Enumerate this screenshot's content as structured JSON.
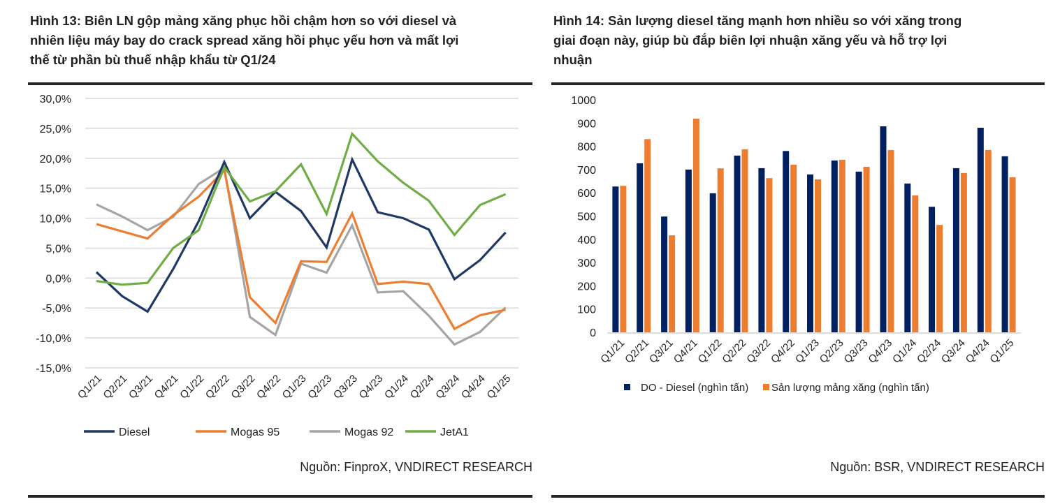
{
  "figures": [
    {
      "title_prefix": "Hình 13",
      "title_lines": [
        ": Biên LN gộp mảng xăng phục hồi chậm hơn so với diesel và",
        "nhiên liệu máy bay do crack spread xăng hồi phục yếu hơn và mất lợi",
        "thế từ phần bù thuế nhập khẩu từ Q1/24"
      ],
      "source": "Nguồn: FinproX, VNDIRECT RESEARCH"
    },
    {
      "title_prefix": "Hình 14",
      "title_lines": [
        ": Sản lượng diesel tăng mạnh hơn nhiều so với xăng trong",
        "giai đoạn này, giúp bù đắp biên lợi nhuận xăng yếu và hỗ trợ lợi",
        "nhuận"
      ],
      "source": "Nguồn: BSR, VNDIRECT RESEARCH"
    }
  ],
  "chart_data": [
    {
      "type": "line",
      "title": "",
      "xlabel": "",
      "ylabel": "",
      "categories": [
        "Q1/21",
        "Q2/21",
        "Q3/21",
        "Q4/21",
        "Q1/22",
        "Q2/22",
        "Q3/22",
        "Q4/22",
        "Q1/23",
        "Q2/23",
        "Q3/23",
        "Q4/23",
        "Q1/24",
        "Q2/24",
        "Q3/24",
        "Q4/24",
        "Q1/25"
      ],
      "ylim": [
        -15,
        30
      ],
      "yticks": [
        30,
        25,
        20,
        15,
        10,
        5,
        0,
        -5,
        -10,
        -15
      ],
      "ytick_labels": [
        "30,0%",
        "25,0%",
        "20,0%",
        "15,0%",
        "10,0%",
        "5,0%",
        "0,0%",
        "-5,0%",
        "-10,0%",
        "-15,0%"
      ],
      "unit": "%",
      "grid": true,
      "legend_position": "bottom",
      "series": [
        {
          "name": "Diesel",
          "color": "#1F3864",
          "values": [
            1.0,
            -3.0,
            -5.6,
            1.5,
            9.5,
            19.4,
            10.0,
            14.4,
            11.2,
            5.1,
            19.8,
            11.0,
            10.0,
            8.1,
            -0.2,
            3.0,
            7.6
          ]
        },
        {
          "name": "Mogas 95",
          "color": "#ED7D31",
          "values": [
            9.0,
            7.8,
            6.6,
            10.5,
            13.6,
            18.0,
            -3.2,
            -7.5,
            2.8,
            2.7,
            10.8,
            -1.0,
            -0.6,
            -1.0,
            -8.5,
            -6.2,
            -5.3
          ]
        },
        {
          "name": "Mogas 92",
          "color": "#A5A5A5",
          "values": [
            12.3,
            10.3,
            8.0,
            10.2,
            15.7,
            18.4,
            -6.5,
            -9.5,
            2.4,
            0.9,
            8.8,
            -2.4,
            -2.2,
            -6.3,
            -11.1,
            -9.0,
            -4.9
          ]
        },
        {
          "name": "JetA1",
          "color": "#70AD47",
          "values": [
            -0.5,
            -1.1,
            -0.8,
            5.0,
            8.0,
            18.5,
            12.8,
            14.5,
            19.0,
            10.7,
            24.1,
            19.5,
            15.9,
            12.9,
            7.2,
            12.2,
            14.0
          ]
        }
      ]
    },
    {
      "type": "bar",
      "title": "",
      "xlabel": "",
      "ylabel": "",
      "categories": [
        "Q1/21",
        "Q2/21",
        "Q3/21",
        "Q4/21",
        "Q1/22",
        "Q2/22",
        "Q3/22",
        "Q4/22",
        "Q1/23",
        "Q2/23",
        "Q3/23",
        "Q4/23",
        "Q1/24",
        "Q2/24",
        "Q3/24",
        "Q4/24",
        "Q1/25"
      ],
      "ylim": [
        0,
        1000
      ],
      "yticks": [
        1000,
        900,
        800,
        700,
        600,
        500,
        400,
        300,
        200,
        100,
        0
      ],
      "ytick_labels": [
        "1000",
        "900",
        "800",
        "700",
        "600",
        "500",
        "400",
        "300",
        "200",
        "100",
        "0"
      ],
      "grid": false,
      "legend_position": "bottom",
      "series": [
        {
          "name": "DO - Diesel (nghìn tấn)",
          "color": "#002060",
          "values": [
            627,
            727,
            498,
            700,
            598,
            760,
            706,
            780,
            679,
            739,
            691,
            886,
            640,
            540,
            706,
            880,
            757
          ]
        },
        {
          "name": "Sản lượng mảng xăng (nghìn tấn)",
          "color": "#ED7D31",
          "values": [
            630,
            831,
            417,
            919,
            705,
            787,
            663,
            721,
            658,
            742,
            712,
            784,
            589,
            462,
            685,
            784,
            667
          ]
        }
      ]
    }
  ]
}
